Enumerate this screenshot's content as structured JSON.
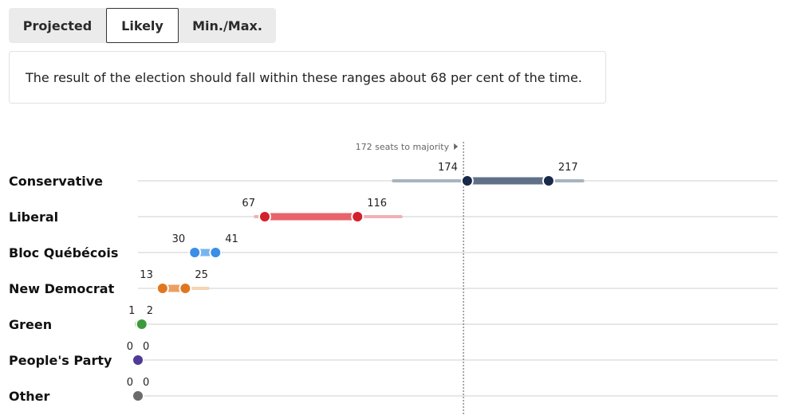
{
  "tabs": [
    {
      "label": "Projected",
      "active": false
    },
    {
      "label": "Likely",
      "active": true
    },
    {
      "label": "Min./Max.",
      "active": false
    }
  ],
  "description": "The result of the election should fall within these ranges about 68 per cent of the time.",
  "chart_data": {
    "type": "range",
    "majority": {
      "value": 172,
      "label": "172 seats to majority"
    },
    "xlim": [
      0,
      338
    ],
    "grid": false,
    "series": [
      {
        "party": "Conservative",
        "color": "#18294a",
        "mid_color": "#5f7088",
        "outer_color": "#a9b3c0",
        "min": 135,
        "low": 174,
        "high": 217,
        "max": 235
      },
      {
        "party": "Liberal",
        "color": "#d4202a",
        "mid_color": "#e8636b",
        "outer_color": "#f0b2b5",
        "min": 62,
        "low": 67,
        "high": 116,
        "max": 139
      },
      {
        "party": "Bloc Québécois",
        "color": "#3b8ee6",
        "mid_color": "#79b4f0",
        "outer_color": "#c5def8",
        "min": 30,
        "low": 30,
        "high": 41,
        "max": 44
      },
      {
        "party": "New Democrat",
        "color": "#e07720",
        "mid_color": "#eb9f63",
        "outer_color": "#f5d3b4",
        "min": 13,
        "low": 13,
        "high": 25,
        "max": 37
      },
      {
        "party": "Green",
        "color": "#3d9a3d",
        "mid_color": "#3d9a3d",
        "outer_color": "#b9dcb9",
        "min": 0,
        "low": 1,
        "high": 2,
        "max": 2
      },
      {
        "party": "People's Party",
        "color": "#4f3a96",
        "mid_color": "#4f3a96",
        "outer_color": "#4f3a96",
        "min": 0,
        "low": 0,
        "high": 0,
        "max": 0
      },
      {
        "party": "Other",
        "color": "#6b6b6b",
        "mid_color": "#6b6b6b",
        "outer_color": "#6b6b6b",
        "min": 0,
        "low": 0,
        "high": 0,
        "max": 0
      }
    ]
  }
}
